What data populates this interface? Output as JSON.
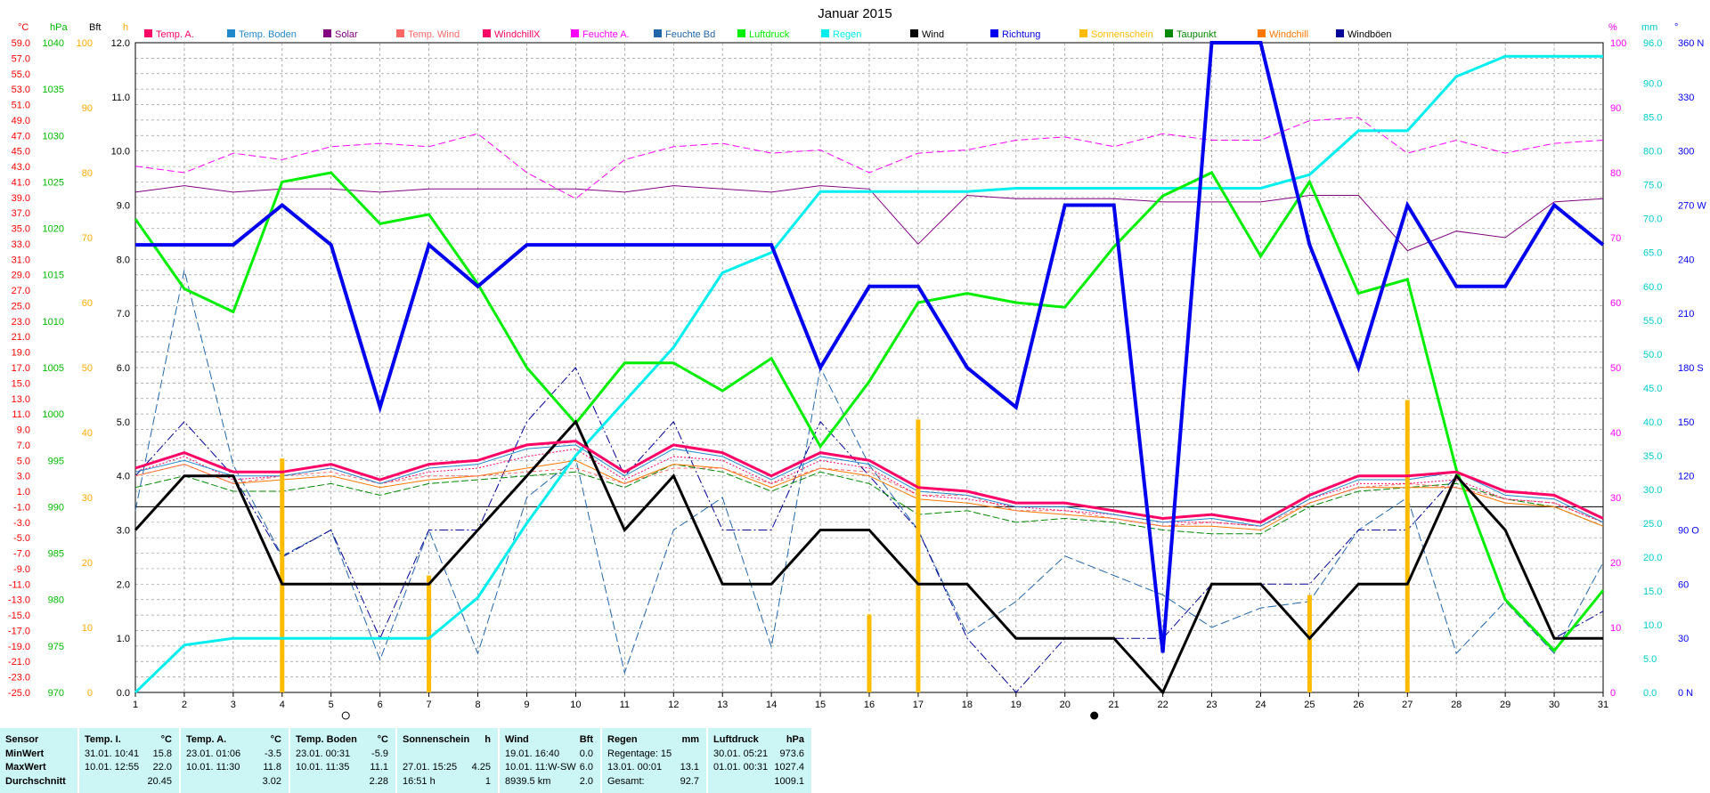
{
  "chart_data": {
    "type": "line",
    "title": "Januar 2015",
    "x": [
      1,
      2,
      3,
      4,
      5,
      6,
      7,
      8,
      9,
      10,
      11,
      12,
      13,
      14,
      15,
      16,
      17,
      18,
      19,
      20,
      21,
      22,
      23,
      24,
      25,
      26,
      27,
      28,
      29,
      30,
      31
    ],
    "xlim": [
      1,
      31
    ],
    "grid": true,
    "legend_position": "top",
    "axes": {
      "temp": {
        "unit": "°C",
        "color": "#ff0000",
        "range": [
          -25.0,
          59.0
        ],
        "step": 2.0,
        "ticks": [
          "-25.0",
          "-23.0",
          "-21.0",
          "-19.0",
          "-17.0",
          "-15.0",
          "-13.0",
          "-11.0",
          "-9.0",
          "-7.0",
          "-5.0",
          "-3.0",
          "-1.0",
          "1.0",
          "3.0",
          "5.0",
          "7.0",
          "9.0",
          "11.0",
          "13.0",
          "15.0",
          "17.0",
          "19.0",
          "21.0",
          "23.0",
          "25.0",
          "27.0",
          "29.0",
          "31.0",
          "33.0",
          "35.0",
          "37.0",
          "39.0",
          "41.0",
          "43.0",
          "45.0",
          "47.0",
          "49.0",
          "51.0",
          "53.0",
          "55.0",
          "57.0",
          "59.0"
        ]
      },
      "hpa": {
        "unit": "hPa",
        "color": "#00bb00",
        "range": [
          970,
          1040
        ],
        "ticks": [
          "970",
          "975",
          "980",
          "985",
          "990",
          "995",
          "1000",
          "1005",
          "1010",
          "1015",
          "1020",
          "1025",
          "1030",
          "1035",
          "1040"
        ]
      },
      "h": {
        "unit": "h",
        "color": "#ffaa00",
        "range": [
          0,
          100
        ],
        "ticks": [
          "0",
          "10",
          "20",
          "30",
          "40",
          "50",
          "60",
          "70",
          "80",
          "90",
          "100"
        ]
      },
      "bft": {
        "unit": "Bft",
        "color": "#000000",
        "range": [
          0,
          12.0
        ],
        "ticks": [
          "0.0",
          "1.0",
          "2.0",
          "3.0",
          "4.0",
          "5.0",
          "6.0",
          "7.0",
          "8.0",
          "9.0",
          "10.0",
          "11.0",
          "12.0"
        ]
      },
      "pct": {
        "unit": "%",
        "color": "#ff00ff",
        "range": [
          0,
          100
        ],
        "ticks": [
          "0",
          "10",
          "20",
          "30",
          "40",
          "50",
          "60",
          "70",
          "80",
          "90",
          "100"
        ]
      },
      "mm": {
        "unit": "mm",
        "color": "#00cccc",
        "range": [
          0,
          96.0
        ],
        "ticks": [
          "0.0",
          "5.0",
          "10.0",
          "15.0",
          "20.0",
          "25.0",
          "30.0",
          "35.0",
          "40.0",
          "45.0",
          "50.0",
          "55.0",
          "60.0",
          "65.0",
          "70.0",
          "75.0",
          "80.0",
          "85.0",
          "90.0",
          "96.0"
        ]
      },
      "deg": {
        "unit": "°",
        "color": "#0000ff",
        "range": [
          0,
          360
        ],
        "ticks": [
          "0 N",
          "30",
          "60",
          "90 O",
          "120",
          "150",
          "180 S",
          "210",
          "240",
          "270 W",
          "300",
          "330",
          "360 N"
        ]
      }
    },
    "series": [
      {
        "name": "Temp. A.",
        "color": "#ff0066",
        "axis": "temp",
        "width": 3,
        "dash": "",
        "values": [
          4.0,
          6.0,
          3.5,
          3.5,
          4.5,
          2.5,
          4.5,
          5.0,
          7.0,
          7.5,
          3.5,
          7.0,
          6.0,
          3.0,
          6.0,
          5.0,
          1.5,
          1.0,
          -0.5,
          -0.5,
          -1.5,
          -2.5,
          -2.0,
          -3.0,
          0.5,
          3.0,
          3.0,
          3.5,
          1.0,
          0.5,
          -2.5
        ]
      },
      {
        "name": "Temp. Boden",
        "color": "#2288cc",
        "axis": "temp",
        "width": 1,
        "dash": "",
        "values": [
          3.5,
          5.0,
          3.0,
          3.0,
          4.0,
          2.0,
          4.0,
          4.5,
          6.5,
          7.0,
          3.0,
          6.5,
          5.5,
          2.5,
          5.5,
          4.5,
          1.0,
          0.5,
          -1.0,
          -1.0,
          -2.0,
          -3.0,
          -2.5,
          -3.5,
          0.0,
          2.5,
          2.5,
          3.5,
          0.5,
          0.0,
          -3.0
        ]
      },
      {
        "name": "Solar",
        "color": "#800080",
        "axis": "pct",
        "width": 1,
        "dash": "",
        "values": [
          77,
          78,
          77,
          77.5,
          77.5,
          77,
          77.5,
          77.5,
          77.5,
          77.5,
          77,
          78,
          77.5,
          77,
          78,
          77.5,
          69,
          76.5,
          76,
          76,
          76,
          75.5,
          75.5,
          75.5,
          76.5,
          76.5,
          68,
          71,
          70,
          75.5,
          76
        ]
      },
      {
        "name": "Temp. Wind",
        "color": "#ff6666",
        "axis": "temp",
        "width": 1,
        "dash": "4,3",
        "values": [
          3.0,
          4.5,
          2.0,
          3.0,
          3.5,
          2.0,
          3.0,
          3.0,
          3.5,
          4.0,
          2.0,
          4.0,
          4.0,
          2.0,
          4.0,
          3.5,
          0.5,
          0.5,
          -1.5,
          -1.5,
          -2.5,
          -3.5,
          -3.0,
          -3.5,
          -0.5,
          1.5,
          2.0,
          1.5,
          0.0,
          -0.5,
          -3.0
        ]
      },
      {
        "name": "WindchillX",
        "color": "#ff0066",
        "axis": "temp",
        "width": 1,
        "dash": "2,2",
        "values": [
          3.5,
          5.5,
          2.5,
          3.0,
          4.0,
          2.0,
          3.5,
          4.0,
          5.5,
          6.5,
          2.5,
          5.5,
          5.0,
          2.0,
          5.0,
          4.0,
          0.5,
          0.0,
          -1.0,
          -1.5,
          -2.0,
          -3.0,
          -3.0,
          -3.5,
          0.0,
          2.0,
          2.0,
          2.5,
          0.0,
          -0.5,
          -3.0
        ]
      },
      {
        "name": "Feuchte A.",
        "color": "#ff00ff",
        "axis": "pct",
        "width": 1,
        "dash": "8,4",
        "values": [
          81,
          80,
          83,
          82,
          84,
          84.5,
          84,
          86,
          80,
          76,
          82,
          84,
          84.5,
          83,
          83.5,
          80,
          83,
          83.5,
          85,
          85.5,
          84,
          86,
          85,
          85,
          88,
          88.5,
          83,
          85,
          83,
          84.5,
          85
        ]
      },
      {
        "name": "Feuchte Bd",
        "color": "#2266aa",
        "axis": "pct",
        "width": 1,
        "dash": "10,4",
        "values": [
          28,
          65,
          35,
          21,
          25,
          5,
          25,
          6,
          30,
          36,
          3,
          25,
          30,
          7,
          50,
          35,
          25,
          9,
          14,
          21,
          18,
          15,
          10,
          13,
          14,
          25,
          30,
          6,
          14,
          6,
          20
        ]
      },
      {
        "name": "Luftdruck",
        "color": "#00ee00",
        "axis": "hpa",
        "width": 3,
        "dash": "",
        "values": [
          1021,
          1013.5,
          1011,
          1025,
          1026,
          1020.5,
          1021.5,
          1014,
          1005,
          999,
          1005.5,
          1005.5,
          1002.5,
          1006,
          996.5,
          1003.5,
          1012,
          1013,
          1012,
          1011.5,
          1018,
          1023.5,
          1026,
          1017,
          1025,
          1013,
          1014.5,
          994,
          980,
          974.5,
          981
        ]
      },
      {
        "name": "Regen",
        "color": "#00eeee",
        "axis": "mm",
        "width": 3,
        "dash": "",
        "values": [
          0,
          7,
          8,
          8,
          8,
          8,
          8,
          14,
          25,
          35,
          43,
          51,
          62,
          65,
          74,
          74,
          74,
          74,
          74.5,
          74.5,
          74.5,
          74.5,
          74.5,
          74.5,
          76.5,
          83,
          83,
          91,
          94,
          94,
          94
        ]
      },
      {
        "name": "Wind",
        "color": "#000000",
        "axis": "bft",
        "width": 3,
        "dash": "",
        "values": [
          3,
          4,
          4,
          2,
          2,
          2,
          2,
          3,
          4,
          5,
          3,
          4,
          2,
          2,
          3,
          3,
          2,
          2,
          1,
          1,
          1,
          0,
          2,
          2,
          1,
          2,
          2,
          4,
          3,
          1,
          1
        ]
      },
      {
        "name": "Richtung",
        "color": "#0000ee",
        "axis": "deg",
        "width": 4,
        "dash": "",
        "values": [
          248,
          248,
          248,
          270,
          248,
          158,
          248,
          225,
          248,
          248,
          248,
          248,
          248,
          248,
          180,
          225,
          225,
          180,
          158,
          270,
          270,
          22,
          360,
          360,
          248,
          180,
          270,
          225,
          225,
          270,
          248
        ]
      },
      {
        "name": "Sonnenschein",
        "color": "#ffbb00",
        "axis": "h",
        "width": 5,
        "dash": "",
        "kind": "bar",
        "values": [
          0,
          0,
          0,
          3.6,
          0,
          0,
          1.8,
          0,
          0,
          0,
          0,
          0,
          0,
          0,
          0,
          1.2,
          4.2,
          0,
          0,
          0,
          0,
          0,
          0,
          0,
          1.5,
          0,
          4.5,
          0,
          0,
          0,
          0
        ]
      },
      {
        "name": "Taupunkt",
        "color": "#008800",
        "axis": "temp",
        "width": 1,
        "dash": "8,3",
        "values": [
          1.5,
          3.0,
          1.0,
          1.0,
          2.0,
          0.5,
          2.0,
          2.5,
          3.0,
          3.5,
          1.5,
          4.5,
          3.5,
          1.0,
          3.5,
          2.0,
          -2.0,
          -1.5,
          -3.0,
          -2.5,
          -3.0,
          -4.0,
          -4.5,
          -4.5,
          -1.0,
          1.0,
          1.5,
          2.0,
          0.0,
          -1.0,
          -3.5
        ]
      },
      {
        "name": "Windchill",
        "color": "#ff7700",
        "axis": "temp",
        "width": 1,
        "dash": "",
        "values": [
          3.0,
          4.5,
          2.0,
          2.5,
          3.0,
          1.5,
          2.5,
          3.0,
          4.0,
          5.0,
          2.0,
          4.5,
          4.0,
          1.5,
          4.0,
          3.0,
          0.0,
          -0.5,
          -1.5,
          -2.0,
          -2.5,
          -3.5,
          -3.5,
          -4.0,
          -0.5,
          1.5,
          1.5,
          1.5,
          -0.5,
          -1.0,
          -3.5
        ]
      },
      {
        "name": "Windböen",
        "color": "#000099",
        "axis": "bft",
        "width": 1,
        "dash": "10,3,2,3",
        "values": [
          4.0,
          5.0,
          4.0,
          2.5,
          3.0,
          1.0,
          3.0,
          3.0,
          5.0,
          6.0,
          4.0,
          5.0,
          3.0,
          3.0,
          5.0,
          4.0,
          3.0,
          1.0,
          0.0,
          1.0,
          1.0,
          1.0,
          2.0,
          2.0,
          2.0,
          3.0,
          3.0,
          4.0,
          3.0,
          1.0,
          1.5
        ]
      }
    ],
    "reference_line": {
      "axis": "temp",
      "value": -1.0,
      "color": "#000000"
    }
  },
  "stats": {
    "header": {
      "sensor": "Sensor",
      "min": "MinWert",
      "max": "MaxWert",
      "avg": "Durchschnitt"
    },
    "blocks": [
      {
        "title": "Temp. I.",
        "unit": "°C",
        "min": {
          "when": "31.01. 10:41",
          "val": "15.8"
        },
        "max": {
          "when": "10.01. 12:55",
          "val": "22.0"
        },
        "avg": {
          "when": "",
          "val": "20.45"
        }
      },
      {
        "title": "Temp. A.",
        "unit": "°C",
        "min": {
          "when": "23.01. 01:06",
          "val": "-3.5"
        },
        "max": {
          "when": "10.01. 11:30",
          "val": "11.8"
        },
        "avg": {
          "when": "",
          "val": "3.02"
        }
      },
      {
        "title": "Temp. Boden",
        "unit": "°C",
        "min": {
          "when": "23.01. 00:31",
          "val": "-5.9"
        },
        "max": {
          "when": "10.01. 11:35",
          "val": "11.1"
        },
        "avg": {
          "when": "",
          "val": "2.28"
        }
      },
      {
        "title": "Sonnenschein",
        "unit": "h",
        "min": {
          "when": "",
          "val": ""
        },
        "max": {
          "when": "27.01. 15:25",
          "val": "4.25"
        },
        "avg": {
          "when": "16:51 h",
          "val": "1"
        }
      },
      {
        "title": "Wind",
        "unit": "Bft",
        "min": {
          "when": "19.01. 16:40",
          "val": "0.0"
        },
        "max": {
          "when": "10.01. 11:W-SW",
          "val": "6.0"
        },
        "avg": {
          "when": "8939.5 km",
          "val": "2.0"
        }
      },
      {
        "title": "Regen",
        "unit": "mm",
        "min": {
          "when": "Regentage: 15",
          "val": ""
        },
        "max": {
          "when": "13.01. 00:01",
          "val": "13.1"
        },
        "avg": {
          "when": "Gesamt:",
          "val": "92.7"
        }
      },
      {
        "title": "Luftdruck",
        "unit": "hPa",
        "min": {
          "when": "30.01. 05:21",
          "val": "973.6"
        },
        "max": {
          "when": "01.01. 00:31",
          "val": "1027.4"
        },
        "avg": {
          "when": "",
          "val": "1009.1"
        }
      }
    ]
  }
}
